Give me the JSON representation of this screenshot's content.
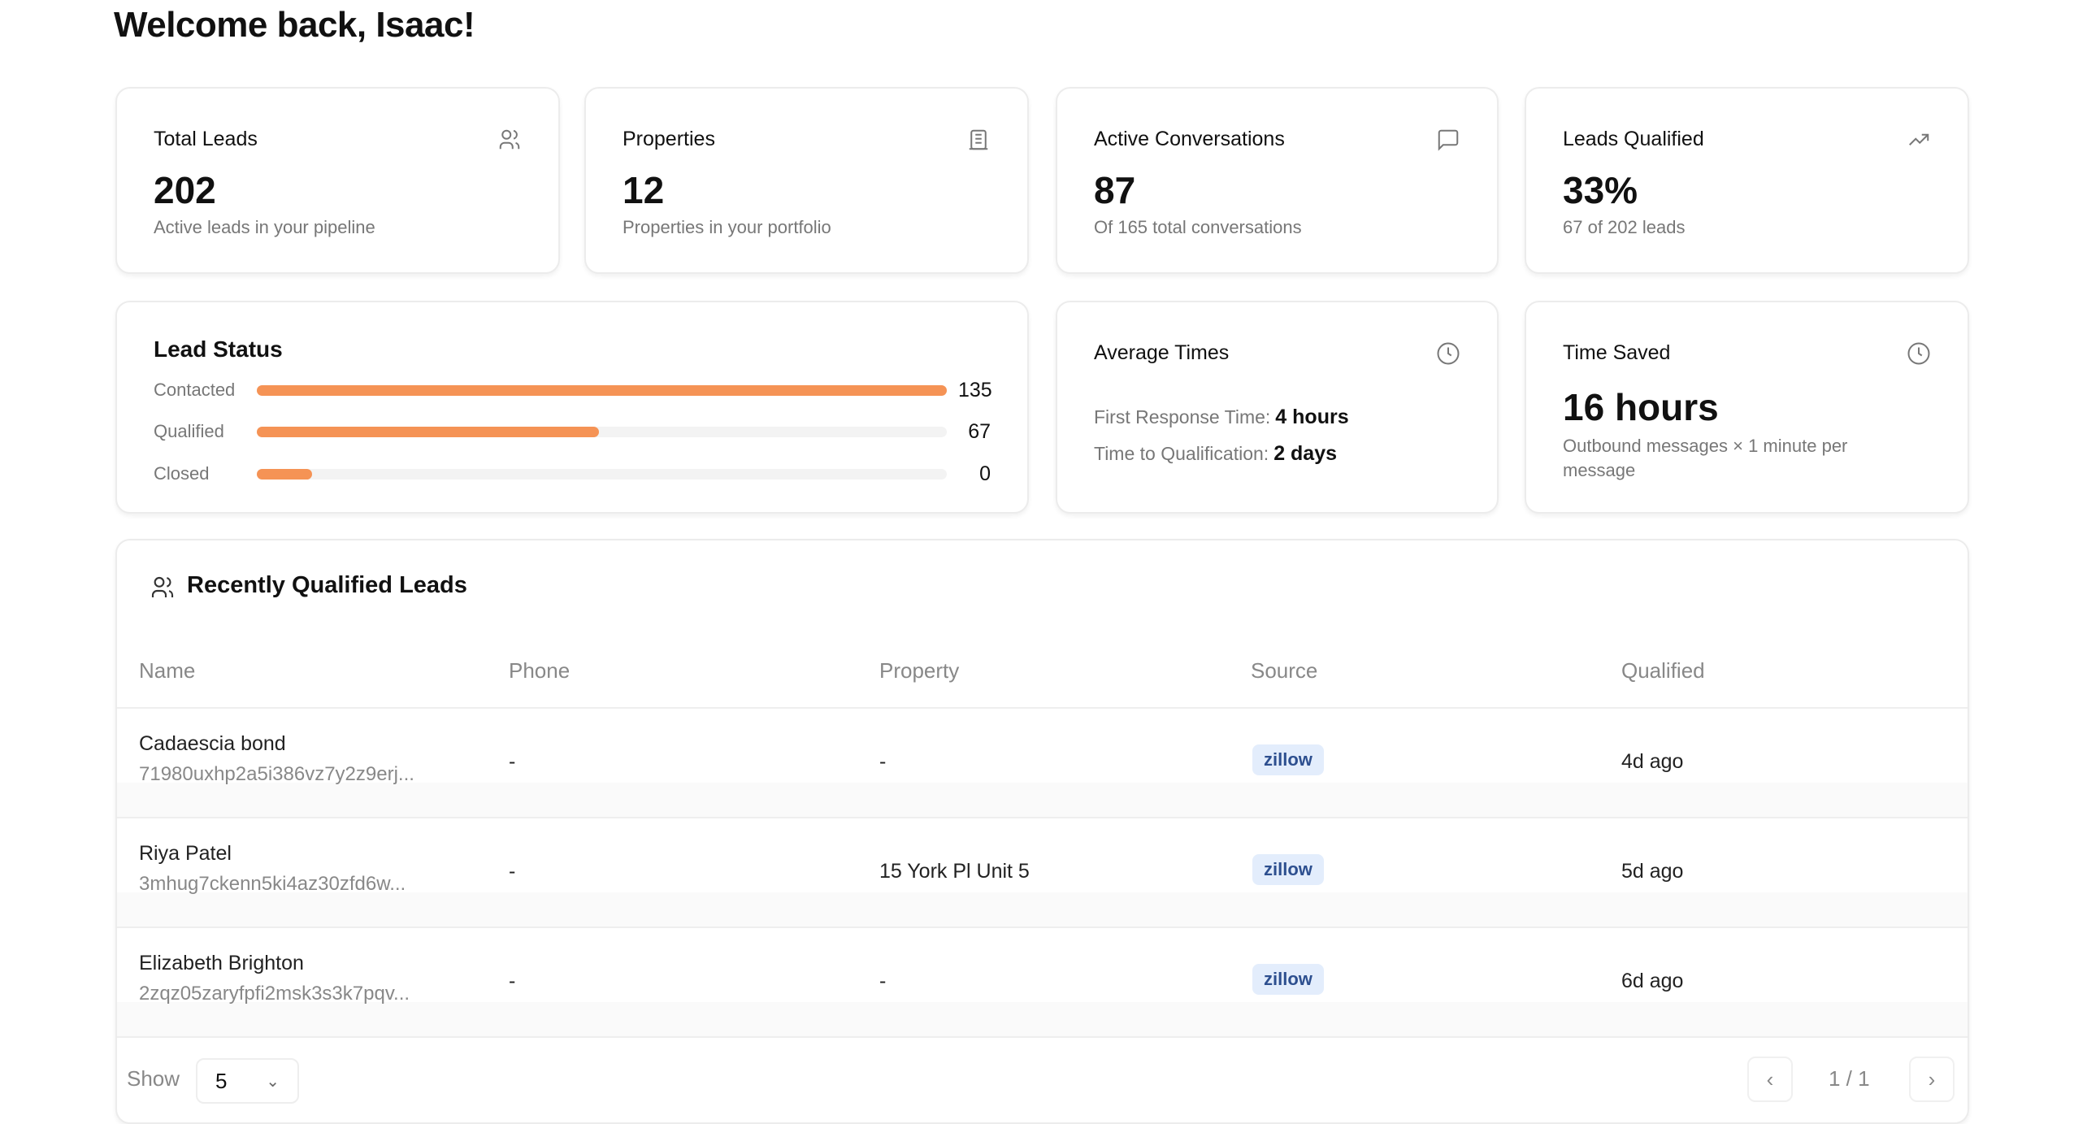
{
  "header": {
    "title": "Welcome back, Isaac!"
  },
  "stats": [
    {
      "title": "Total Leads",
      "value": "202",
      "subtitle": "Active leads in your pipeline",
      "icon": "users-icon"
    },
    {
      "title": "Properties",
      "value": "12",
      "subtitle": "Properties in your portfolio",
      "icon": "building-icon"
    },
    {
      "title": "Active Conversations",
      "value": "87",
      "subtitle": "Of 165 total conversations",
      "icon": "message-square-icon"
    },
    {
      "title": "Leads Qualified",
      "value": "33%",
      "subtitle": "67 of 202 leads",
      "icon": "trending-up-icon"
    }
  ],
  "lead_status": {
    "title": "Lead Status",
    "max": 135,
    "items": [
      {
        "label": "Contacted",
        "value": "135",
        "count": 135
      },
      {
        "label": "Qualified",
        "value": "67",
        "count": 67
      },
      {
        "label": "Closed",
        "value": "0",
        "count": 0
      }
    ]
  },
  "average_times": {
    "title": "Average Times",
    "icon": "clock-icon",
    "first_response_label": "First Response Time:",
    "first_response_value": "4 hours",
    "qualification_label": "Time to Qualification:",
    "qualification_value": "2 days"
  },
  "time_saved": {
    "title": "Time Saved",
    "icon": "clock-icon",
    "value": "16 hours",
    "subtitle": "Outbound messages × 1 minute per message"
  },
  "leads_table": {
    "title": "Recently Qualified Leads",
    "columns": [
      "Name",
      "Phone",
      "Property",
      "Source",
      "Qualified"
    ],
    "rows": [
      {
        "name": "Cadaescia bond",
        "id": "71980uxhp2a5i386vz7y2z9erj...",
        "phone": "-",
        "property": "-",
        "source": "zillow",
        "qualified": "4d ago"
      },
      {
        "name": "Riya Patel",
        "id": "3mhug7ckenn5ki4az30zfd6w...",
        "phone": "-",
        "property": "15 York Pl Unit 5",
        "source": "zillow",
        "qualified": "5d ago"
      },
      {
        "name": "Elizabeth Brighton",
        "id": "2zqz05zaryfpfi2msk3s3k7pqv...",
        "phone": "-",
        "property": "-",
        "source": "zillow",
        "qualified": "6d ago"
      }
    ],
    "show_label": "Show",
    "page_size": "5",
    "page_indicator": "1 / 1"
  },
  "colors": {
    "bar": "#f59355",
    "badge_bg": "#e3edfc",
    "badge_text": "#2d4f8f"
  }
}
